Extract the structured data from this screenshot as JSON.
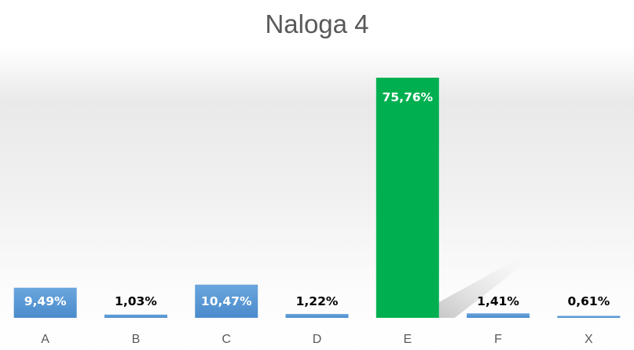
{
  "chart_data": {
    "type": "bar",
    "title": "Naloga 4",
    "categories": [
      "A",
      "B",
      "C",
      "D",
      "E",
      "F",
      "X"
    ],
    "values": [
      9.49,
      1.03,
      10.47,
      1.22,
      75.76,
      1.41,
      0.61
    ],
    "data_labels": [
      "9,49%",
      "1,03%",
      "10,47%",
      "1,22%",
      "75,76%",
      "1,41%",
      "0,61%"
    ],
    "ylim": [
      0,
      80
    ],
    "grid": false,
    "legend": "none",
    "colors": {
      "default_bar": "#5b9bd5",
      "highlight_bar": "#00b050",
      "label_dark": "#000000",
      "label_light": "#ffffff",
      "axis_text": "#595959"
    },
    "highlight_index": 4
  }
}
